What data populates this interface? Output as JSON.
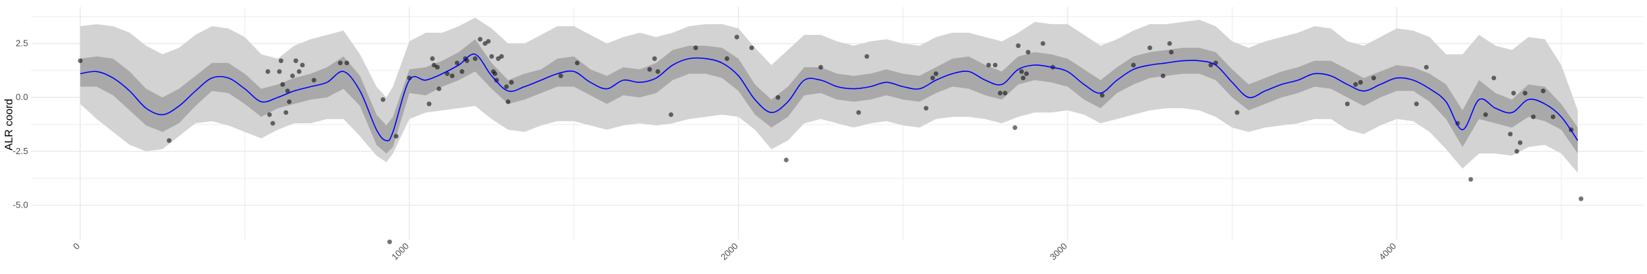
{
  "chart_data": {
    "type": "line",
    "title": "",
    "xlabel": "",
    "ylabel": "ALR coord",
    "xlim": [
      -150,
      4750
    ],
    "ylim": [
      -6.6,
      4.2
    ],
    "x_ticks": [
      0,
      1000,
      2000,
      3000,
      4000
    ],
    "x_tick_labels": [
      "0",
      "1000",
      "2000",
      "3000",
      "4000"
    ],
    "y_ticks": [
      -5.0,
      -2.5,
      0.0,
      2.5
    ],
    "y_tick_labels": [
      "-5.0",
      "-2.5",
      "0.0",
      "2.5"
    ],
    "x_minor_gridlines": [
      500,
      1500,
      2500,
      3500,
      4500
    ],
    "y_minor_gridlines": [
      -3.75,
      -1.25,
      1.25,
      3.75
    ],
    "grid": true,
    "colors": {
      "line": "#0000ff",
      "band_outer": "#d3d3d3",
      "band_inner": "#a9a9a9",
      "points": "#000000",
      "grid": "#ebebeb"
    },
    "series": [
      {
        "kind": "band_outer",
        "x": [
          0,
          50,
          100,
          150,
          200,
          250,
          300,
          350,
          400,
          450,
          500,
          550,
          600,
          650,
          700,
          750,
          800,
          850,
          900,
          930,
          950,
          1000,
          1050,
          1100,
          1150,
          1200,
          1250,
          1300,
          1350,
          1400,
          1450,
          1500,
          1550,
          1600,
          1650,
          1700,
          1750,
          1800,
          1850,
          1900,
          1950,
          2000,
          2050,
          2100,
          2150,
          2200,
          2250,
          2300,
          2350,
          2400,
          2450,
          2500,
          2550,
          2600,
          2650,
          2700,
          2750,
          2800,
          2850,
          2900,
          2950,
          3000,
          3050,
          3100,
          3150,
          3200,
          3250,
          3300,
          3350,
          3400,
          3450,
          3500,
          3550,
          3600,
          3650,
          3700,
          3750,
          3800,
          3850,
          3900,
          3950,
          4000,
          4050,
          4100,
          4150,
          4200,
          4250,
          4300,
          4350,
          4400,
          4450,
          4500,
          4550
        ],
        "upper": [
          3.3,
          3.4,
          3.3,
          3.0,
          2.4,
          2.0,
          2.3,
          2.9,
          3.3,
          3.2,
          2.8,
          2.0,
          1.8,
          2.4,
          2.7,
          2.9,
          3.1,
          2.0,
          0.5,
          0.0,
          0.5,
          2.6,
          3.0,
          3.0,
          3.3,
          3.7,
          3.2,
          2.5,
          2.5,
          2.9,
          3.3,
          3.3,
          2.9,
          2.5,
          2.8,
          3.0,
          2.8,
          3.0,
          3.3,
          3.4,
          3.4,
          3.2,
          2.3,
          1.5,
          2.2,
          2.9,
          2.9,
          2.6,
          2.4,
          2.6,
          2.7,
          2.5,
          2.4,
          2.8,
          3.0,
          3.0,
          2.8,
          2.6,
          3.0,
          3.5,
          3.4,
          3.4,
          2.9,
          2.4,
          2.7,
          3.1,
          3.4,
          3.4,
          3.5,
          3.6,
          3.3,
          2.6,
          2.3,
          2.6,
          2.8,
          3.0,
          3.3,
          3.2,
          2.6,
          2.4,
          2.8,
          3.2,
          3.1,
          2.8,
          2.0,
          2.0,
          2.9,
          2.4,
          2.2,
          2.8,
          2.7,
          1.5,
          -0.6
        ],
        "lower": [
          -0.3,
          -1.0,
          -1.6,
          -2.2,
          -2.5,
          -2.4,
          -1.8,
          -1.2,
          -1.1,
          -1.3,
          -1.6,
          -1.9,
          -1.5,
          -1.2,
          -1.2,
          -1.0,
          -1.0,
          -1.8,
          -2.7,
          -3.0,
          -2.6,
          -1.0,
          -0.7,
          -0.6,
          -0.5,
          -0.4,
          -1.0,
          -1.5,
          -1.6,
          -1.3,
          -1.1,
          -1.1,
          -1.3,
          -1.5,
          -1.3,
          -1.2,
          -1.3,
          -1.2,
          -1.0,
          -0.9,
          -0.8,
          -0.9,
          -1.5,
          -2.4,
          -2.0,
          -1.2,
          -1.0,
          -1.2,
          -1.4,
          -1.2,
          -1.1,
          -1.3,
          -1.4,
          -1.0,
          -0.9,
          -0.9,
          -1.0,
          -1.2,
          -0.9,
          -0.7,
          -0.7,
          -0.6,
          -0.8,
          -1.2,
          -1.0,
          -0.8,
          -0.6,
          -0.5,
          -0.5,
          -0.6,
          -0.9,
          -1.4,
          -1.6,
          -1.4,
          -1.3,
          -1.2,
          -1.0,
          -1.0,
          -1.5,
          -1.7,
          -1.3,
          -1.0,
          -1.1,
          -1.6,
          -2.4,
          -3.3,
          -2.6,
          -2.6,
          -2.7,
          -2.3,
          -2.2,
          -2.6,
          -3.5
        ]
      },
      {
        "kind": "band_inner",
        "x": [
          0,
          50,
          100,
          150,
          200,
          250,
          300,
          350,
          400,
          450,
          500,
          550,
          600,
          650,
          700,
          750,
          800,
          850,
          900,
          930,
          950,
          1000,
          1050,
          1100,
          1150,
          1200,
          1250,
          1300,
          1350,
          1400,
          1450,
          1500,
          1550,
          1600,
          1650,
          1700,
          1750,
          1800,
          1850,
          1900,
          1950,
          2000,
          2050,
          2100,
          2150,
          2200,
          2250,
          2300,
          2350,
          2400,
          2450,
          2500,
          2550,
          2600,
          2650,
          2700,
          2750,
          2800,
          2850,
          2900,
          2950,
          3000,
          3050,
          3100,
          3150,
          3200,
          3250,
          3300,
          3350,
          3400,
          3450,
          3500,
          3550,
          3600,
          3650,
          3700,
          3750,
          3800,
          3850,
          3900,
          3950,
          4000,
          4050,
          4100,
          4150,
          4200,
          4250,
          4300,
          4350,
          4400,
          4450,
          4500,
          4550
        ],
        "upper": [
          1.8,
          1.9,
          1.8,
          1.2,
          0.4,
          0.0,
          0.4,
          1.0,
          1.6,
          1.6,
          1.1,
          0.4,
          0.6,
          0.9,
          1.1,
          1.4,
          1.9,
          1.0,
          -0.8,
          -1.3,
          -0.9,
          1.3,
          1.4,
          1.7,
          2.1,
          2.7,
          1.6,
          0.8,
          1.1,
          1.3,
          1.8,
          1.9,
          1.3,
          1.0,
          1.4,
          1.3,
          1.6,
          2.2,
          2.4,
          2.4,
          2.3,
          1.8,
          0.6,
          -0.1,
          0.5,
          1.4,
          1.4,
          1.1,
          1.0,
          1.1,
          1.3,
          1.1,
          1.0,
          1.4,
          1.8,
          1.9,
          1.5,
          1.2,
          1.9,
          2.1,
          2.0,
          1.8,
          1.3,
          0.8,
          1.4,
          1.9,
          2.1,
          2.2,
          2.3,
          2.3,
          2.1,
          1.3,
          0.6,
          0.9,
          1.2,
          1.4,
          1.7,
          1.7,
          1.3,
          0.9,
          1.2,
          1.5,
          1.4,
          1.1,
          0.6,
          -0.6,
          0.8,
          0.2,
          -0.1,
          0.6,
          0.5,
          -0.3,
          -1.4
        ],
        "lower": [
          0.5,
          0.5,
          0.1,
          -0.6,
          -1.3,
          -1.6,
          -1.2,
          -0.4,
          0.3,
          0.2,
          -0.3,
          -0.9,
          -0.5,
          -0.3,
          -0.1,
          0.0,
          0.4,
          -0.4,
          -2.2,
          -2.6,
          -2.3,
          0.2,
          0.1,
          0.5,
          0.8,
          1.2,
          0.4,
          -0.3,
          -0.1,
          0.2,
          0.5,
          0.5,
          0.1,
          -0.3,
          0.1,
          0.0,
          0.2,
          0.8,
          1.1,
          1.1,
          0.9,
          0.3,
          -0.8,
          -1.4,
          -0.9,
          0.1,
          0.2,
          -0.1,
          -0.2,
          -0.1,
          0.1,
          -0.1,
          -0.2,
          0.2,
          0.5,
          0.4,
          0.1,
          -0.1,
          0.6,
          0.8,
          0.7,
          0.5,
          -0.1,
          -0.5,
          0.2,
          0.6,
          0.9,
          1.0,
          1.1,
          1.1,
          0.8,
          0.0,
          -0.6,
          -0.3,
          0.0,
          0.2,
          0.5,
          0.4,
          0.0,
          -0.4,
          0.0,
          0.3,
          0.3,
          -0.2,
          -1.0,
          -2.3,
          -1.0,
          -1.2,
          -1.4,
          -0.9,
          -1.1,
          -1.5,
          -2.6
        ]
      },
      {
        "kind": "line",
        "x": [
          0,
          50,
          100,
          150,
          200,
          250,
          300,
          350,
          400,
          450,
          500,
          550,
          600,
          650,
          700,
          750,
          800,
          850,
          900,
          930,
          950,
          1000,
          1050,
          1100,
          1150,
          1200,
          1250,
          1300,
          1350,
          1400,
          1450,
          1500,
          1550,
          1600,
          1650,
          1700,
          1750,
          1800,
          1850,
          1900,
          1950,
          2000,
          2050,
          2100,
          2150,
          2200,
          2250,
          2300,
          2350,
          2400,
          2450,
          2500,
          2550,
          2600,
          2650,
          2700,
          2750,
          2800,
          2850,
          2900,
          2950,
          3000,
          3050,
          3100,
          3150,
          3200,
          3250,
          3300,
          3350,
          3400,
          3450,
          3500,
          3550,
          3600,
          3650,
          3700,
          3750,
          3800,
          3850,
          3900,
          3950,
          4000,
          4050,
          4100,
          4150,
          4200,
          4250,
          4300,
          4350,
          4400,
          4450,
          4500,
          4550
        ],
        "y": [
          1.1,
          1.2,
          0.9,
          0.3,
          -0.5,
          -0.8,
          -0.4,
          0.3,
          0.9,
          0.9,
          0.4,
          -0.2,
          0.0,
          0.3,
          0.5,
          0.7,
          1.2,
          0.3,
          -1.5,
          -2.0,
          -1.6,
          0.8,
          0.8,
          1.1,
          1.5,
          2.0,
          1.0,
          0.3,
          0.5,
          0.8,
          1.1,
          1.2,
          0.7,
          0.4,
          0.8,
          0.7,
          0.9,
          1.5,
          1.8,
          1.8,
          1.6,
          1.0,
          -0.1,
          -0.7,
          -0.2,
          0.8,
          0.8,
          0.5,
          0.4,
          0.5,
          0.7,
          0.5,
          0.4,
          0.8,
          1.1,
          1.2,
          0.8,
          0.6,
          1.3,
          1.5,
          1.4,
          1.2,
          0.6,
          0.2,
          0.8,
          1.3,
          1.5,
          1.6,
          1.7,
          1.7,
          1.5,
          0.7,
          0.0,
          0.3,
          0.6,
          0.8,
          1.1,
          1.0,
          0.6,
          0.3,
          0.6,
          0.9,
          0.8,
          0.4,
          -0.2,
          -1.5,
          -0.1,
          -0.5,
          -0.7,
          -0.1,
          -0.3,
          -0.9,
          -2.0
        ]
      }
    ],
    "points": [
      {
        "x": 0,
        "y": 1.7
      },
      {
        "x": 270,
        "y": -2.0
      },
      {
        "x": 570,
        "y": 1.2
      },
      {
        "x": 575,
        "y": -0.8
      },
      {
        "x": 585,
        "y": -1.2
      },
      {
        "x": 605,
        "y": 1.2
      },
      {
        "x": 610,
        "y": 1.7
      },
      {
        "x": 615,
        "y": 0.6
      },
      {
        "x": 625,
        "y": -0.7
      },
      {
        "x": 630,
        "y": 0.3
      },
      {
        "x": 635,
        "y": -0.2
      },
      {
        "x": 645,
        "y": 1.0
      },
      {
        "x": 655,
        "y": 1.7
      },
      {
        "x": 665,
        "y": 1.2
      },
      {
        "x": 675,
        "y": 1.5
      },
      {
        "x": 710,
        "y": 0.8
      },
      {
        "x": 790,
        "y": 1.6
      },
      {
        "x": 810,
        "y": 1.6
      },
      {
        "x": 920,
        "y": -0.1
      },
      {
        "x": 940,
        "y": -6.7
      },
      {
        "x": 960,
        "y": -1.8
      },
      {
        "x": 1000,
        "y": 0.9
      },
      {
        "x": 1060,
        "y": -0.3
      },
      {
        "x": 1070,
        "y": 1.8
      },
      {
        "x": 1075,
        "y": 1.5
      },
      {
        "x": 1085,
        "y": 1.4
      },
      {
        "x": 1090,
        "y": 0.4
      },
      {
        "x": 1115,
        "y": 1.1
      },
      {
        "x": 1130,
        "y": 1.0
      },
      {
        "x": 1145,
        "y": 1.6
      },
      {
        "x": 1160,
        "y": 1.2
      },
      {
        "x": 1170,
        "y": 1.8
      },
      {
        "x": 1175,
        "y": 1.7
      },
      {
        "x": 1200,
        "y": 1.8
      },
      {
        "x": 1215,
        "y": 2.7
      },
      {
        "x": 1230,
        "y": 2.5
      },
      {
        "x": 1240,
        "y": 2.6
      },
      {
        "x": 1250,
        "y": 1.9
      },
      {
        "x": 1255,
        "y": 1.2
      },
      {
        "x": 1260,
        "y": 1.1
      },
      {
        "x": 1265,
        "y": 0.8
      },
      {
        "x": 1270,
        "y": 1.8
      },
      {
        "x": 1280,
        "y": 1.9
      },
      {
        "x": 1295,
        "y": 0.5
      },
      {
        "x": 1300,
        "y": -0.2
      },
      {
        "x": 1310,
        "y": 0.7
      },
      {
        "x": 1460,
        "y": 1.0
      },
      {
        "x": 1510,
        "y": 1.6
      },
      {
        "x": 1730,
        "y": 1.3
      },
      {
        "x": 1745,
        "y": 1.8
      },
      {
        "x": 1755,
        "y": 1.2
      },
      {
        "x": 1795,
        "y": -0.8
      },
      {
        "x": 1870,
        "y": 2.3
      },
      {
        "x": 1965,
        "y": 1.8
      },
      {
        "x": 1995,
        "y": 2.8
      },
      {
        "x": 2040,
        "y": 2.3
      },
      {
        "x": 2120,
        "y": 0.0
      },
      {
        "x": 2145,
        "y": -2.9
      },
      {
        "x": 2250,
        "y": 1.4
      },
      {
        "x": 2365,
        "y": -0.7
      },
      {
        "x": 2390,
        "y": 1.9
      },
      {
        "x": 2570,
        "y": -0.5
      },
      {
        "x": 2590,
        "y": 0.9
      },
      {
        "x": 2600,
        "y": 1.1
      },
      {
        "x": 2760,
        "y": 1.5
      },
      {
        "x": 2780,
        "y": 1.5
      },
      {
        "x": 2795,
        "y": 0.2
      },
      {
        "x": 2810,
        "y": 0.2
      },
      {
        "x": 2840,
        "y": -1.4
      },
      {
        "x": 2850,
        "y": 2.4
      },
      {
        "x": 2860,
        "y": 1.2
      },
      {
        "x": 2865,
        "y": 0.9
      },
      {
        "x": 2875,
        "y": 1.1
      },
      {
        "x": 2880,
        "y": 2.1
      },
      {
        "x": 2925,
        "y": 2.5
      },
      {
        "x": 2955,
        "y": 1.4
      },
      {
        "x": 3105,
        "y": 0.1
      },
      {
        "x": 3200,
        "y": 1.5
      },
      {
        "x": 3250,
        "y": 2.3
      },
      {
        "x": 3290,
        "y": 1.0
      },
      {
        "x": 3310,
        "y": 2.5
      },
      {
        "x": 3315,
        "y": 2.1
      },
      {
        "x": 3435,
        "y": 1.5
      },
      {
        "x": 3450,
        "y": 1.6
      },
      {
        "x": 3515,
        "y": -0.7
      },
      {
        "x": 3850,
        "y": -0.3
      },
      {
        "x": 3875,
        "y": 0.6
      },
      {
        "x": 3890,
        "y": 0.7
      },
      {
        "x": 3930,
        "y": 0.9
      },
      {
        "x": 4060,
        "y": -0.3
      },
      {
        "x": 4090,
        "y": 1.4
      },
      {
        "x": 4185,
        "y": -1.2
      },
      {
        "x": 4225,
        "y": -3.8
      },
      {
        "x": 4270,
        "y": -0.8
      },
      {
        "x": 4295,
        "y": 0.9
      },
      {
        "x": 4345,
        "y": -1.7
      },
      {
        "x": 4355,
        "y": 0.2
      },
      {
        "x": 4365,
        "y": -2.5
      },
      {
        "x": 4375,
        "y": -2.1
      },
      {
        "x": 4390,
        "y": 0.2
      },
      {
        "x": 4415,
        "y": -0.9
      },
      {
        "x": 4445,
        "y": 0.3
      },
      {
        "x": 4475,
        "y": -0.9
      },
      {
        "x": 4530,
        "y": -1.5
      },
      {
        "x": 4560,
        "y": -4.7
      }
    ]
  }
}
